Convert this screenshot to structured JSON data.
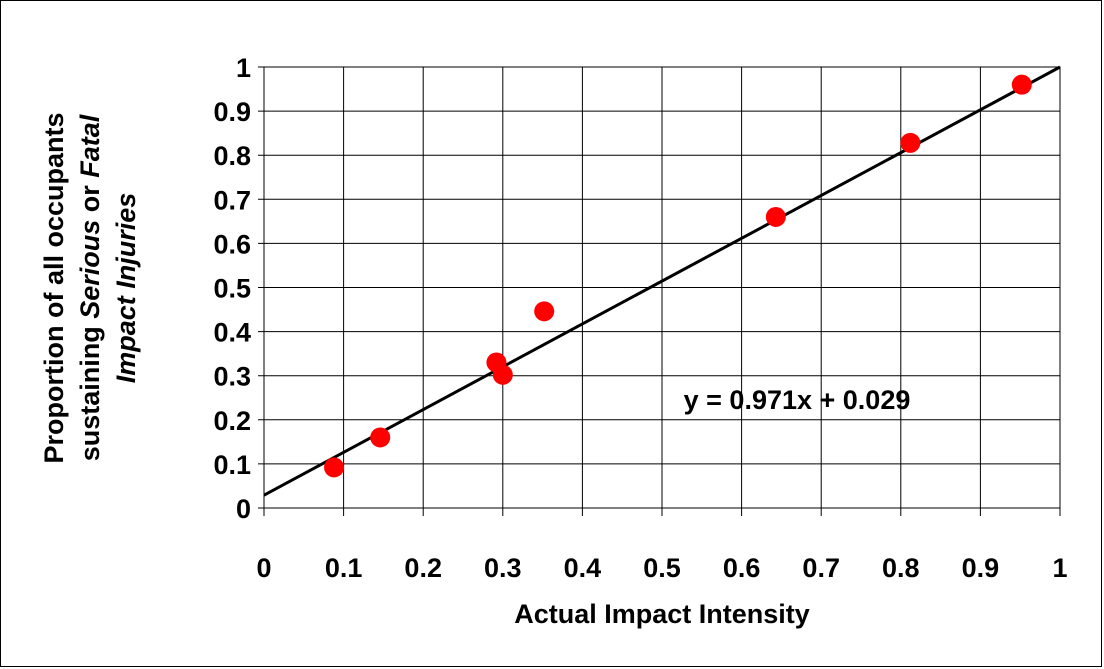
{
  "chart_data": {
    "type": "scatter",
    "x": [
      0.088,
      0.146,
      0.292,
      0.3,
      0.352,
      0.643,
      0.812,
      0.952
    ],
    "y": [
      0.092,
      0.16,
      0.33,
      0.302,
      0.446,
      0.66,
      0.828,
      0.96
    ],
    "point_color": "#ff0000",
    "xlim": [
      0,
      1
    ],
    "ylim": [
      0,
      1
    ],
    "x_ticks": [
      "0",
      "0.1",
      "0.2",
      "0.3",
      "0.4",
      "0.5",
      "0.6",
      "0.7",
      "0.8",
      "0.9",
      "1"
    ],
    "y_ticks": [
      "0",
      "0.1",
      "0.2",
      "0.3",
      "0.4",
      "0.5",
      "0.6",
      "0.7",
      "0.8",
      "0.9",
      "1"
    ],
    "xlabel": "Actual Impact Intensity",
    "ylabel_line1": "Proportion of all occupants",
    "ylabel_line2_a": "sustaining ",
    "ylabel_line2_b": "Serious",
    "ylabel_line2_c": " or ",
    "ylabel_line2_d": "Fatal",
    "ylabel_line3": "Impact Injuries",
    "trendline": {
      "slope": 0.971,
      "intercept": 0.029,
      "color": "#000000"
    },
    "equation": "y = 0.971x + 0.029",
    "grid": true
  }
}
